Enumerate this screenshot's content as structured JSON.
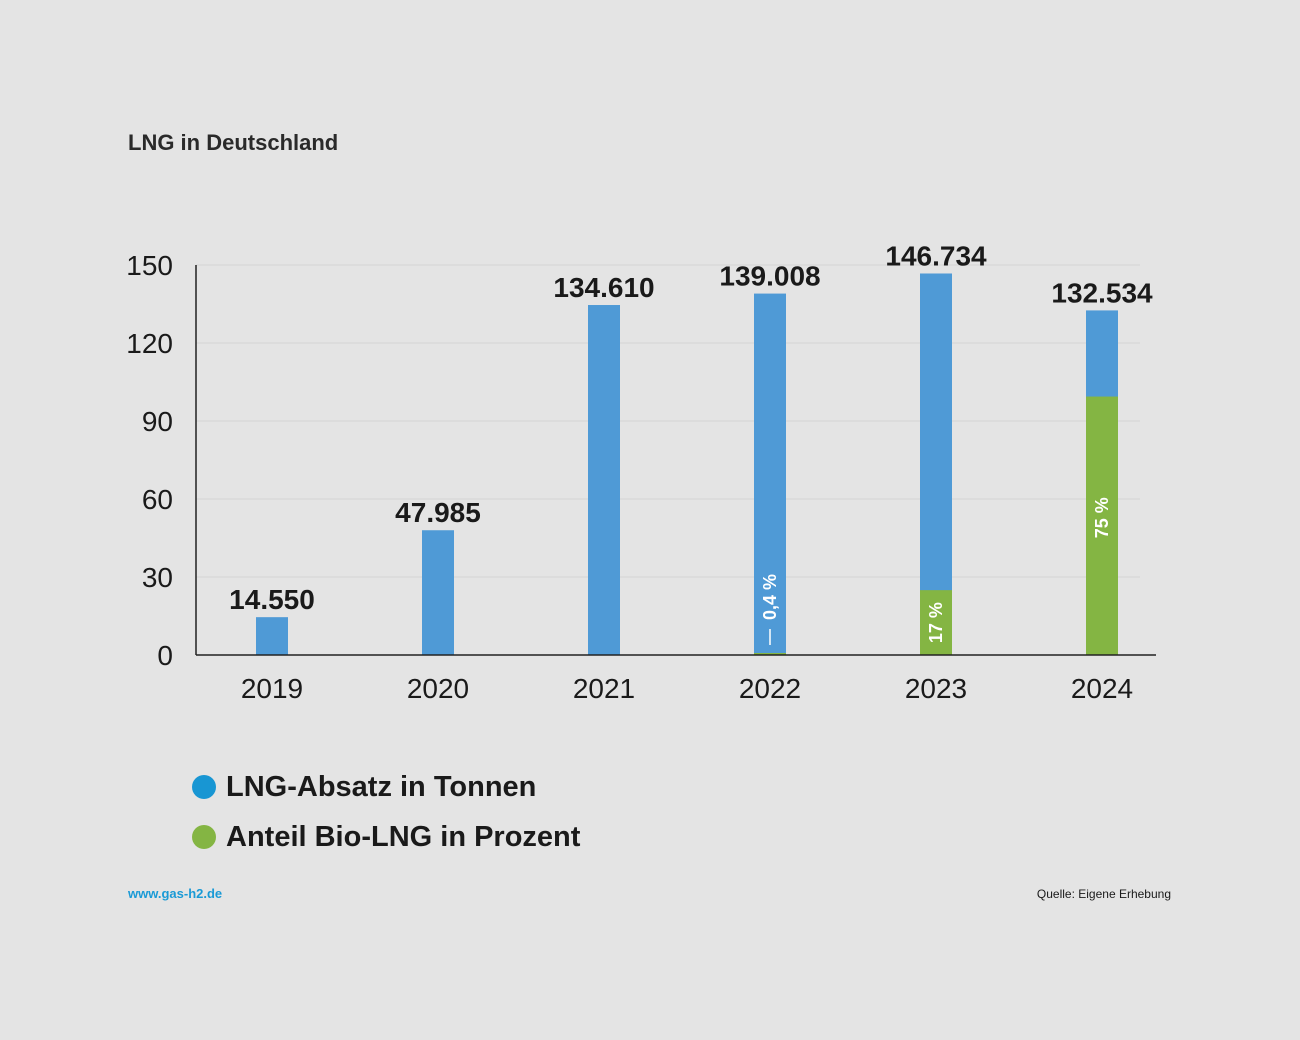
{
  "colors": {
    "blue": "#4f9ad6",
    "green": "#84b543",
    "legend_blue": "#1896d3",
    "url": "#1a9ad6"
  },
  "header": {
    "title": "LNG in Deutschland"
  },
  "footer": {
    "url": "www.gas-h2.de",
    "source": "Quelle: Eigene Erhebung"
  },
  "legend": [
    {
      "label": "LNG-Absatz in Tonnen",
      "color": "#1896d3"
    },
    {
      "label": "Anteil Bio-LNG in Prozent",
      "color": "#84b543"
    }
  ],
  "chart_data": {
    "type": "bar",
    "title": "LNG in Deutschland",
    "categories": [
      "2019",
      "2020",
      "2021",
      "2022",
      "2023",
      "2024"
    ],
    "series": [
      {
        "name": "LNG-Absatz in Tonnen",
        "values": [
          14.55,
          47.985,
          134.61,
          139.008,
          146.734,
          132.534
        ],
        "labels": [
          "14.550",
          "47.985",
          "134.610",
          "139.008",
          "146.734",
          "132.534"
        ]
      },
      {
        "name": "Anteil Bio-LNG in Prozent",
        "values": [
          0,
          0,
          0,
          0.4,
          17,
          75
        ],
        "labels": [
          "",
          "",
          "",
          "0,4 %",
          "17 %",
          "75 %"
        ]
      }
    ],
    "yticks": [
      0,
      30,
      60,
      90,
      120,
      150
    ],
    "ylim": [
      0,
      150
    ],
    "grid": true,
    "legend_position": "bottom-left"
  }
}
